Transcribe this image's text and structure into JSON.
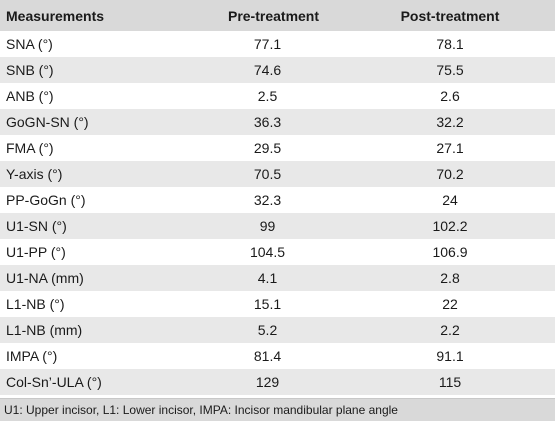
{
  "table": {
    "headers": [
      "Measurements",
      "Pre-treatment",
      "Post-treatment"
    ],
    "rows": [
      [
        "SNA (°)",
        "77.1",
        "78.1"
      ],
      [
        "SNB (°)",
        "74.6",
        "75.5"
      ],
      [
        "ANB (°)",
        "2.5",
        "2.6"
      ],
      [
        "GoGN-SN (°)",
        "36.3",
        "32.2"
      ],
      [
        "FMA (°)",
        "29.5",
        "27.1"
      ],
      [
        "Y-axis (°)",
        "70.5",
        "70.2"
      ],
      [
        "PP-GoGn (°)",
        "32.3",
        "24"
      ],
      [
        "U1-SN (°)",
        "99",
        "102.2"
      ],
      [
        "U1-PP (°)",
        "104.5",
        "106.9"
      ],
      [
        "U1-NA (mm)",
        "4.1",
        "2.8"
      ],
      [
        "L1-NB (°)",
        "15.1",
        "22"
      ],
      [
        "L1-NB (mm)",
        "5.2",
        "2.2"
      ],
      [
        "IMPA (°)",
        "81.4",
        "91.1"
      ],
      [
        "Col-Sn’-ULA (°)",
        "129",
        "115"
      ]
    ],
    "footnote": "U1: Upper incisor, L1: Lower incisor, IMPA: Incisor mandibular plane angle"
  }
}
